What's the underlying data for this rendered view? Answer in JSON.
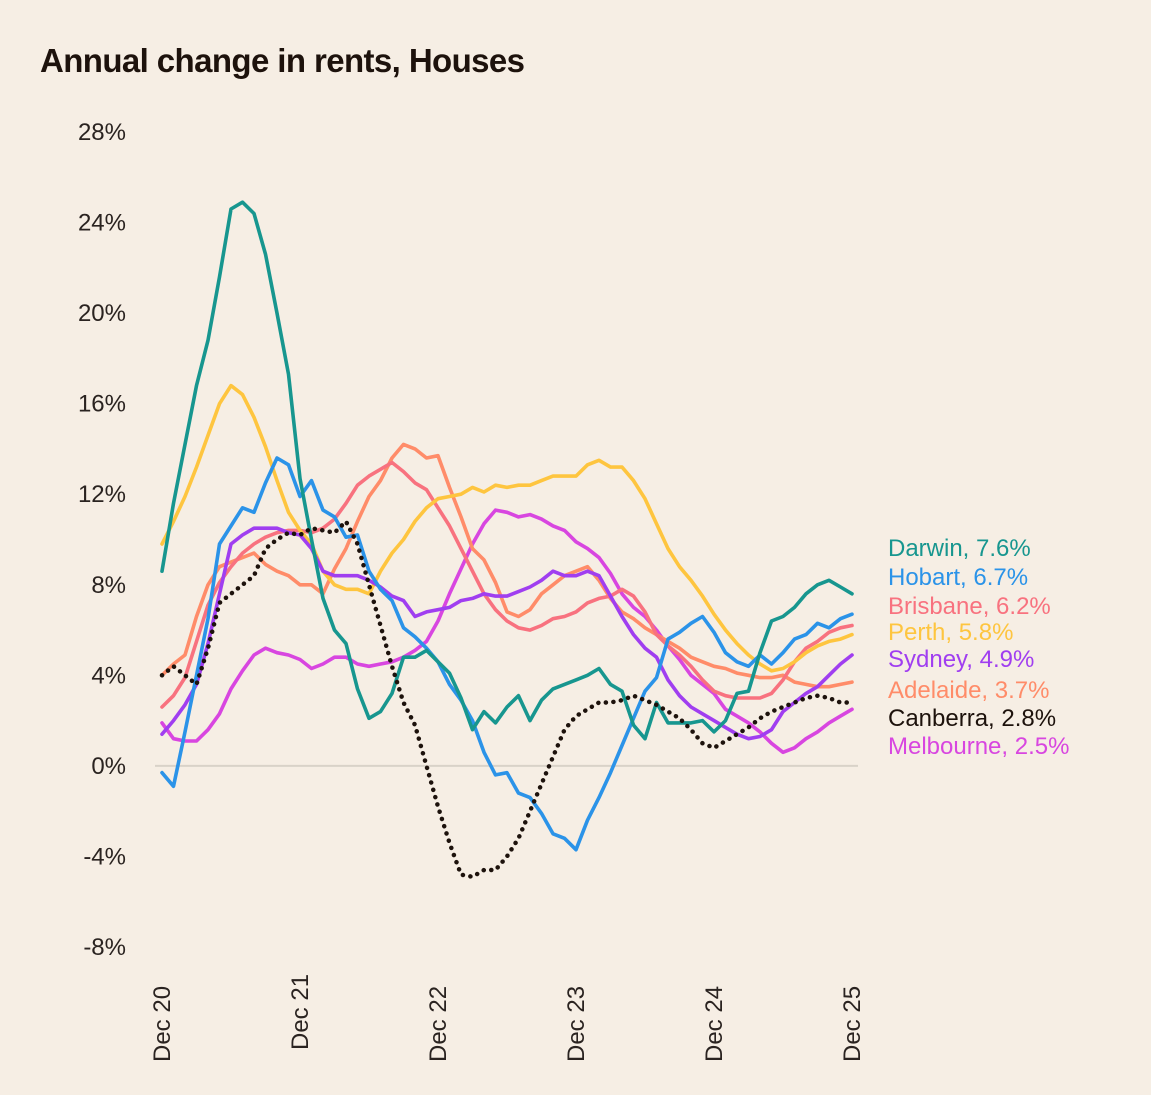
{
  "chart_data": {
    "type": "line",
    "title": "Annual change in rents, Houses",
    "xlabel": "",
    "ylabel": "",
    "ylim": [
      -8,
      28
    ],
    "yticks": [
      -8,
      -4,
      0,
      4,
      8,
      12,
      16,
      20,
      24,
      28
    ],
    "ytick_labels": [
      "-8%",
      "-4%",
      "0%",
      "4%",
      "8%",
      "12%",
      "16%",
      "20%",
      "24%",
      "28%"
    ],
    "x_start": "Dec 20",
    "x_end": "Dec 25",
    "x_frequency": "monthly",
    "xtick_labels": [
      "Dec 20",
      "Dec 21",
      "Dec 22",
      "Dec 23",
      "Dec 24",
      "Dec 25"
    ],
    "xtick_index": [
      0,
      12,
      24,
      36,
      48,
      60
    ],
    "zero_line": true,
    "grid": false,
    "legend_placement": "right (end-of-line labels)",
    "series": [
      {
        "name": "Darwin",
        "label": "Darwin, 7.6%",
        "final": 7.6,
        "color": "#17968f",
        "dashed": false,
        "values": [
          8.6,
          11.6,
          14.2,
          16.8,
          18.8,
          21.6,
          24.6,
          24.9,
          24.4,
          22.6,
          20.0,
          17.3,
          12.7,
          10.0,
          7.4,
          6.0,
          5.4,
          3.4,
          2.1,
          2.4,
          3.2,
          4.8,
          4.8,
          5.1,
          4.6,
          4.1,
          3.0,
          1.6,
          2.4,
          1.9,
          2.6,
          3.1,
          2.0,
          2.9,
          3.4,
          3.6,
          3.8,
          4.0,
          4.3,
          3.6,
          3.3,
          1.8,
          1.2,
          2.8,
          1.9,
          1.9,
          1.9,
          2.0,
          1.5,
          2.0,
          3.2,
          3.3,
          5.0,
          6.4,
          6.6,
          7.0,
          7.6,
          8.0,
          8.2,
          7.9,
          7.6
        ]
      },
      {
        "name": "Hobart",
        "label": "Hobart, 6.7%",
        "final": 6.7,
        "color": "#2b93e8",
        "dashed": false,
        "values": [
          -0.3,
          -0.9,
          1.5,
          4.0,
          6.5,
          9.8,
          10.6,
          11.4,
          11.2,
          12.5,
          13.6,
          13.3,
          11.9,
          12.6,
          11.3,
          11.0,
          10.1,
          10.2,
          8.6,
          7.8,
          7.3,
          6.1,
          5.7,
          5.2,
          4.6,
          3.6,
          2.9,
          2.0,
          0.6,
          -0.4,
          -0.3,
          -1.2,
          -1.4,
          -2.1,
          -3.0,
          -3.2,
          -3.7,
          -2.4,
          -1.4,
          -0.3,
          0.9,
          2.1,
          3.3,
          3.9,
          5.6,
          5.9,
          6.3,
          6.6,
          5.9,
          5.0,
          4.6,
          4.4,
          4.9,
          4.5,
          5.0,
          5.6,
          5.8,
          6.3,
          6.1,
          6.5,
          6.7
        ]
      },
      {
        "name": "Brisbane",
        "label": "Brisbane, 6.2%",
        "final": 6.2,
        "color": "#f8727f",
        "dashed": false,
        "values": [
          2.6,
          3.1,
          3.9,
          5.5,
          7.1,
          8.1,
          8.8,
          9.4,
          9.8,
          10.1,
          10.3,
          10.4,
          10.4,
          10.3,
          10.5,
          10.9,
          11.6,
          12.4,
          12.8,
          13.1,
          13.4,
          13.0,
          12.5,
          12.2,
          11.4,
          10.6,
          9.6,
          8.6,
          7.6,
          6.9,
          6.4,
          6.1,
          6.0,
          6.2,
          6.5,
          6.6,
          6.8,
          7.2,
          7.4,
          7.5,
          7.8,
          7.5,
          6.8,
          5.8,
          5.3,
          4.9,
          4.4,
          3.8,
          3.3,
          3.1,
          3.0,
          3.0,
          3.0,
          3.2,
          3.8,
          4.6,
          5.2,
          5.5,
          5.9,
          6.1,
          6.2
        ]
      },
      {
        "name": "Perth",
        "label": "Perth, 5.8%",
        "final": 5.8,
        "color": "#fec53f",
        "dashed": false,
        "values": [
          9.8,
          10.8,
          11.9,
          13.2,
          14.6,
          16.0,
          16.8,
          16.4,
          15.4,
          14.1,
          12.6,
          11.2,
          10.4,
          9.8,
          8.6,
          8.0,
          7.8,
          7.8,
          7.6,
          8.6,
          9.4,
          10.0,
          10.8,
          11.4,
          11.8,
          11.9,
          12.0,
          12.3,
          12.1,
          12.4,
          12.3,
          12.4,
          12.4,
          12.6,
          12.8,
          12.8,
          12.8,
          13.3,
          13.5,
          13.2,
          13.2,
          12.6,
          11.8,
          10.7,
          9.6,
          8.8,
          8.2,
          7.5,
          6.7,
          6.0,
          5.4,
          4.9,
          4.5,
          4.2,
          4.3,
          4.6,
          5.0,
          5.3,
          5.5,
          5.6,
          5.8
        ]
      },
      {
        "name": "Sydney",
        "label": "Sydney, 4.9%",
        "final": 4.9,
        "color": "#a03ef0",
        "dashed": false,
        "values": [
          1.4,
          2.0,
          2.7,
          3.6,
          5.4,
          7.6,
          9.8,
          10.2,
          10.5,
          10.5,
          10.5,
          10.3,
          10.2,
          9.6,
          8.6,
          8.4,
          8.4,
          8.4,
          8.2,
          7.9,
          7.5,
          7.3,
          6.6,
          6.8,
          6.9,
          7.0,
          7.3,
          7.4,
          7.6,
          7.5,
          7.5,
          7.7,
          7.9,
          8.2,
          8.6,
          8.4,
          8.4,
          8.6,
          8.4,
          7.5,
          6.6,
          5.8,
          5.2,
          4.8,
          3.8,
          3.1,
          2.6,
          2.3,
          2.0,
          1.7,
          1.4,
          1.2,
          1.3,
          1.6,
          2.4,
          2.8,
          3.2,
          3.5,
          4.0,
          4.5,
          4.9
        ]
      },
      {
        "name": "Adelaide",
        "label": "Adelaide, 3.7%",
        "final": 3.7,
        "color": "#ff8c69",
        "dashed": false,
        "values": [
          4.0,
          4.5,
          4.9,
          6.6,
          8.0,
          8.8,
          9.0,
          9.2,
          9.4,
          8.9,
          8.6,
          8.4,
          8.0,
          8.0,
          7.6,
          8.7,
          9.6,
          10.8,
          11.9,
          12.6,
          13.6,
          14.2,
          14.0,
          13.6,
          13.7,
          12.3,
          11.0,
          9.6,
          9.1,
          8.1,
          6.8,
          6.6,
          6.9,
          7.6,
          8.0,
          8.4,
          8.6,
          8.8,
          8.2,
          7.4,
          6.8,
          6.5,
          6.1,
          5.8,
          5.5,
          5.2,
          4.8,
          4.6,
          4.4,
          4.3,
          4.1,
          4.0,
          3.9,
          3.9,
          4.0,
          3.7,
          3.6,
          3.5,
          3.5,
          3.6,
          3.7
        ]
      },
      {
        "name": "Canberra",
        "label": "Canberra, 2.8%",
        "final": 2.8,
        "color": "#1d120c",
        "dashed": true,
        "values": [
          4.0,
          4.4,
          4.0,
          3.6,
          5.2,
          7.2,
          7.6,
          8.0,
          8.4,
          9.6,
          10.0,
          10.3,
          10.2,
          10.5,
          10.4,
          10.3,
          10.8,
          9.8,
          8.0,
          6.2,
          4.4,
          2.8,
          1.8,
          0.0,
          -1.8,
          -3.4,
          -4.8,
          -4.9,
          -4.6,
          -4.6,
          -4.0,
          -3.2,
          -2.0,
          -0.8,
          0.4,
          1.6,
          2.2,
          2.5,
          2.8,
          2.8,
          2.9,
          3.1,
          2.9,
          2.7,
          2.4,
          2.1,
          1.6,
          1.0,
          0.8,
          1.1,
          1.4,
          1.7,
          2.1,
          2.4,
          2.6,
          2.8,
          3.0,
          3.1,
          3.0,
          2.8,
          2.8
        ]
      },
      {
        "name": "Melbourne",
        "label": "Melbourne, 2.5%",
        "final": 2.5,
        "color": "#d846e0",
        "dashed": false,
        "values": [
          1.9,
          1.2,
          1.1,
          1.1,
          1.6,
          2.3,
          3.4,
          4.2,
          4.9,
          5.2,
          5.0,
          4.9,
          4.7,
          4.3,
          4.5,
          4.8,
          4.8,
          4.5,
          4.4,
          4.5,
          4.6,
          4.8,
          5.1,
          5.5,
          6.4,
          7.6,
          8.7,
          9.8,
          10.7,
          11.3,
          11.2,
          11.0,
          11.1,
          10.9,
          10.6,
          10.4,
          9.9,
          9.6,
          9.2,
          8.5,
          7.6,
          7.0,
          6.6,
          6.0,
          5.3,
          4.7,
          4.0,
          3.6,
          3.2,
          2.5,
          2.2,
          1.9,
          1.5,
          1.0,
          0.6,
          0.8,
          1.2,
          1.5,
          1.9,
          2.2,
          2.5
        ]
      }
    ]
  }
}
